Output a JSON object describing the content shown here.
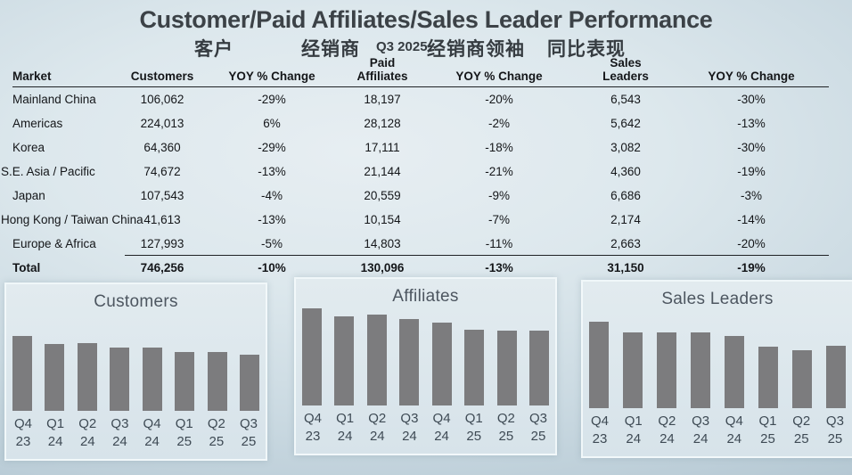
{
  "slide": {
    "title": "Customer/Paid Affiliates/Sales Leader Performance",
    "subtitle": {
      "customers_zh": "客户",
      "affiliates_zh": "经销商",
      "quarter": "Q3 2025",
      "leaders_zh": "经销商领袖",
      "yoy_zh": "同比表现"
    }
  },
  "table": {
    "headers": [
      [
        "Market"
      ],
      [
        "Customers"
      ],
      [
        "YOY % Change"
      ],
      [
        "Paid",
        "Affiliates"
      ],
      [
        "YOY % Change"
      ],
      [
        "Sales",
        "Leaders"
      ],
      [
        "YOY % Change"
      ]
    ],
    "rows": [
      {
        "market": "Mainland China",
        "values": [
          "106,062",
          "-29%",
          "18,197",
          "-20%",
          "6,543",
          "-30%"
        ],
        "bold": false
      },
      {
        "market": "Americas",
        "values": [
          "224,013",
          "6%",
          "28,128",
          "-2%",
          "5,642",
          "-13%"
        ],
        "bold": false
      },
      {
        "market": "Korea",
        "values": [
          "64,360",
          "-29%",
          "17,111",
          "-18%",
          "3,082",
          "-30%"
        ],
        "bold": false
      },
      {
        "market": "S.E. Asia / Pacific",
        "values": [
          "74,672",
          "-13%",
          "21,144",
          "-21%",
          "4,360",
          "-19%"
        ],
        "bold": false
      },
      {
        "market": "Japan",
        "values": [
          "107,543",
          "-4%",
          "20,559",
          "-9%",
          "6,686",
          "-3%"
        ],
        "bold": false
      },
      {
        "market": "Hong Kong / Taiwan China",
        "values": [
          "41,613",
          "-13%",
          "10,154",
          "-7%",
          "2,174",
          "-14%"
        ],
        "bold": false
      },
      {
        "market": "Europe & Africa",
        "values": [
          "127,993",
          "-5%",
          "14,803",
          "-11%",
          "2,663",
          "-20%"
        ],
        "bold": false
      },
      {
        "market": "Total",
        "values": [
          "746,256",
          "-10%",
          "130,096",
          "-13%",
          "31,150",
          "-19%"
        ],
        "bold": true
      }
    ]
  },
  "chart_data": [
    {
      "type": "bar",
      "title": "Customers",
      "categories": [
        "Q4 23",
        "Q1 24",
        "Q2 24",
        "Q3 24",
        "Q4 24",
        "Q1 25",
        "Q2 25",
        "Q3 25"
      ],
      "values": [
        100,
        89,
        91,
        84,
        85,
        79,
        78,
        75
      ],
      "value_units": "relative index, Q4 23 = 100 (no value axis shown)",
      "xlabel": "",
      "ylabel": "",
      "grid": false,
      "legend": false
    },
    {
      "type": "bar",
      "title": "Affiliates",
      "categories": [
        "Q4 23",
        "Q1 24",
        "Q2 24",
        "Q3 24",
        "Q4 24",
        "Q1 25",
        "Q2 25",
        "Q3 25"
      ],
      "values": [
        100,
        92,
        94,
        89,
        85,
        78,
        77,
        77
      ],
      "value_units": "relative index, Q4 23 = 100 (no value axis shown)",
      "xlabel": "",
      "ylabel": "",
      "grid": false,
      "legend": false
    },
    {
      "type": "bar",
      "title": "Sales Leaders",
      "categories": [
        "Q4 23",
        "Q1 24",
        "Q2 24",
        "Q3 24",
        "Q4 24",
        "Q1 25",
        "Q2 25",
        "Q3 25"
      ],
      "values": [
        100,
        88,
        88,
        88,
        84,
        71,
        67,
        72
      ],
      "value_units": "relative index, Q4 23 = 100 (no value axis shown)",
      "xlabel": "",
      "ylabel": "",
      "grid": false,
      "legend": false
    }
  ],
  "colors": {
    "bar": "#7c7c7e",
    "panel_background": "#dce6eb",
    "slide_background_center": "#e7eef2",
    "slide_background_edge": "#abbfca",
    "text": "#141619",
    "chart_title_text": "#4d5660",
    "axis_label_text": "#3e4a54"
  }
}
